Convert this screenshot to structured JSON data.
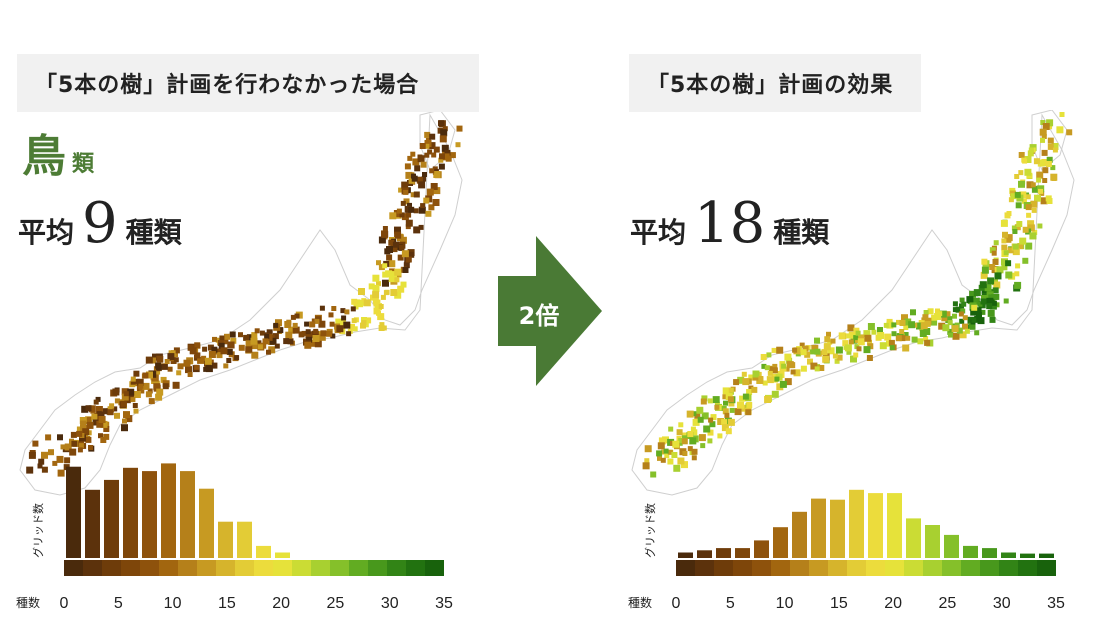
{
  "left_panel": {
    "title": "「5本の樹」計画を行わなかった場合",
    "taxon_big": "鳥",
    "taxon_small": "類",
    "avg_prefix": "平均",
    "avg_value": "9",
    "avg_suffix": "種類"
  },
  "right_panel": {
    "title": "「5本の樹」計画の効果",
    "avg_prefix": "平均",
    "avg_value": "18",
    "avg_suffix": "種類"
  },
  "arrow": {
    "label": "2倍",
    "color": "#4a7a35"
  },
  "colors": {
    "scale": [
      "#4a2a0c",
      "#5c320c",
      "#6e3c0a",
      "#7e460a",
      "#8e520c",
      "#a2660f",
      "#b5801a",
      "#c79a22",
      "#d6b42c",
      "#e3cc36",
      "#ecdc3c",
      "#e6e23a",
      "#cbdc34",
      "#a8d030",
      "#85c02a",
      "#62ac22",
      "#48981c",
      "#328416",
      "#227210",
      "#18620c"
    ],
    "outline": "#cfcfcf"
  },
  "chart_data": [
    {
      "type": "bar",
      "title": "",
      "xlabel": "種数",
      "ylabel": "グリッド数",
      "x_ticks": [
        0,
        5,
        10,
        15,
        20,
        25,
        30,
        35
      ],
      "xlim": [
        0,
        35
      ],
      "bin_width": 1.75,
      "values": [
        0.83,
        0.62,
        0.71,
        0.82,
        0.79,
        0.86,
        0.79,
        0.63,
        0.33,
        0.33,
        0.11,
        0.05,
        0,
        0,
        0,
        0,
        0,
        0,
        0,
        0
      ]
    },
    {
      "type": "bar",
      "title": "",
      "xlabel": "種数",
      "ylabel": "グリッド数",
      "x_ticks": [
        0,
        5,
        10,
        15,
        20,
        25,
        30,
        35
      ],
      "xlim": [
        0,
        35
      ],
      "bin_width": 1.75,
      "values": [
        0.05,
        0.07,
        0.09,
        0.09,
        0.16,
        0.28,
        0.42,
        0.54,
        0.53,
        0.62,
        0.59,
        0.59,
        0.36,
        0.3,
        0.21,
        0.11,
        0.09,
        0.05,
        0.04,
        0.04
      ]
    }
  ]
}
